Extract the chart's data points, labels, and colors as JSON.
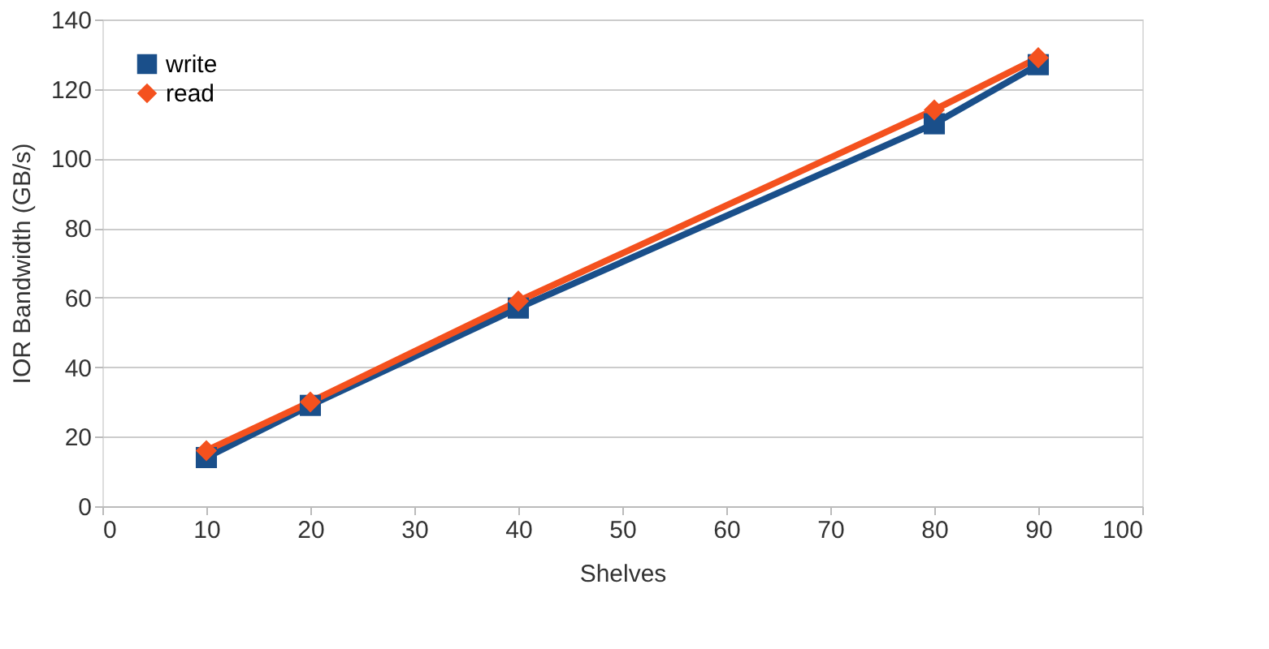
{
  "chart_data": {
    "type": "line",
    "xlabel": "Shelves",
    "ylabel": "IOR Bandwidth (GB/s)",
    "x": [
      10,
      20,
      40,
      80,
      90
    ],
    "series": [
      {
        "name": "write",
        "color": "#1a4f8a",
        "marker": "square",
        "values": [
          14,
          29,
          57,
          110,
          127
        ]
      },
      {
        "name": "read",
        "color": "#f4511e",
        "marker": "diamond",
        "values": [
          16,
          30,
          59,
          114,
          129
        ]
      }
    ],
    "xlim": [
      0,
      100
    ],
    "xticks": [
      0,
      10,
      20,
      30,
      40,
      50,
      60,
      70,
      80,
      90,
      100
    ],
    "ylim": [
      0,
      140
    ],
    "yticks": [
      0,
      20,
      40,
      60,
      80,
      100,
      120,
      140
    ],
    "grid": "y",
    "legend": "top left",
    "line_style": "solid"
  }
}
